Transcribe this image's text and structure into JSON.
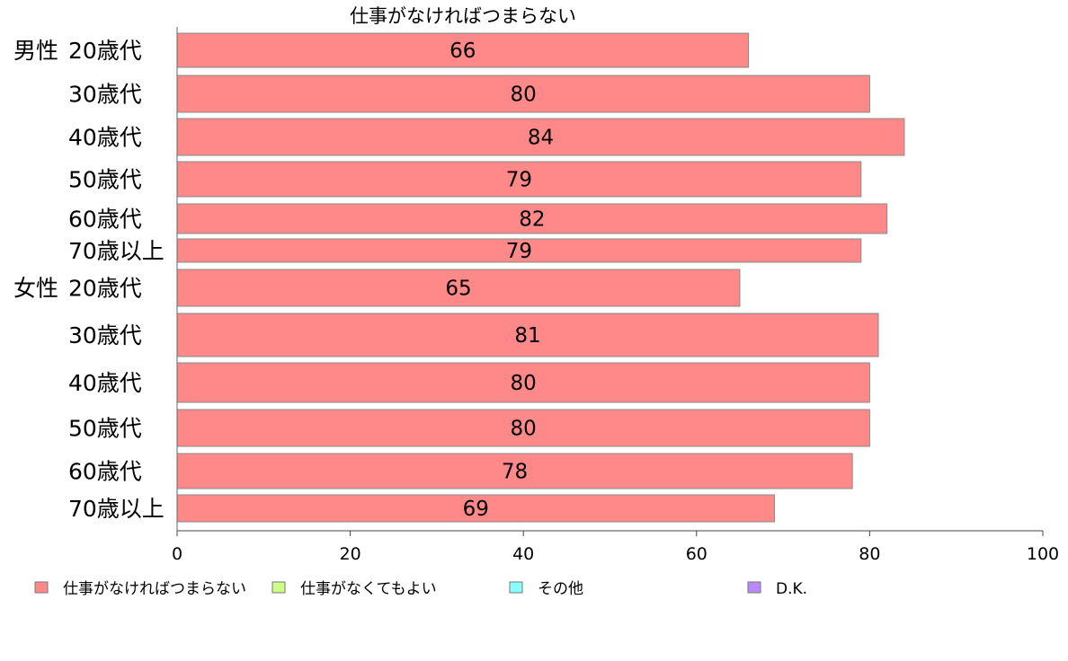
{
  "chart_data": {
    "type": "bar",
    "orientation": "horizontal",
    "title": "仕事がなければつまらない",
    "groups": [
      "男性",
      "女性"
    ],
    "categories": [
      "20歳代",
      "30歳代",
      "40歳代",
      "50歳代",
      "60歳代",
      "70歳以上",
      "20歳代",
      "30歳代",
      "40歳代",
      "50歳代",
      "60歳代",
      "70歳以上"
    ],
    "series": [
      {
        "name": "仕事がなければつまらない",
        "color": "#ff8888",
        "values": [
          66,
          80,
          84,
          79,
          82,
          79,
          65,
          81,
          80,
          80,
          78,
          69
        ]
      }
    ],
    "xlim": [
      0,
      100
    ],
    "xticks": [
      0,
      20,
      40,
      60,
      80,
      100
    ],
    "grid": false,
    "legend": {
      "position": "bottom",
      "entries": [
        {
          "label": "仕事がなければつまらない",
          "color": "#ff8888"
        },
        {
          "label": "仕事がなくてもよい",
          "color": "#ccff88"
        },
        {
          "label": "その他",
          "color": "#88ffff"
        },
        {
          "label": "D.K.",
          "color": "#bb88ff"
        }
      ]
    }
  }
}
